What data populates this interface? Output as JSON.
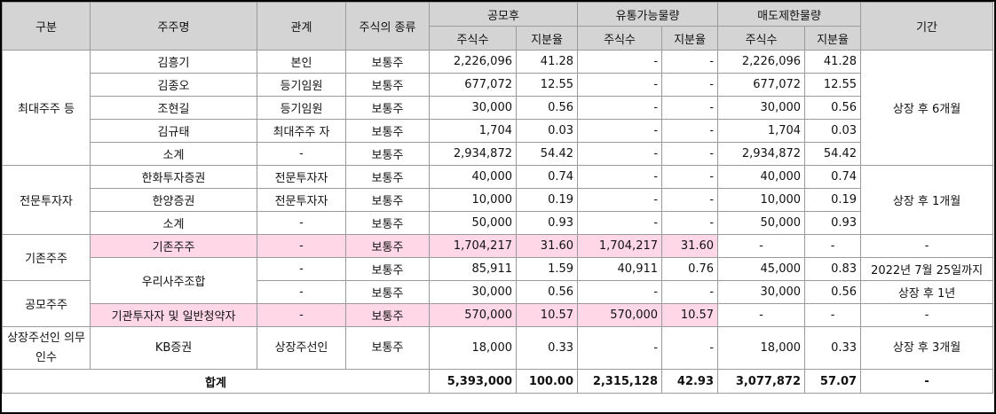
{
  "headers": {
    "category": "구분",
    "holder": "주주명",
    "relation": "관계",
    "stock_type": "주식의 종류",
    "post_ipo": "공모후",
    "tradable": "유통가능물량",
    "restricted": "매도제한물량",
    "period": "기간",
    "shares": "주식수",
    "ratio": "지분율"
  },
  "groups": {
    "major": "최대주주 등",
    "professional": "전문투자자",
    "existing": "기존주주",
    "public": "공모주주",
    "listing": "상장주선인 의무인수"
  },
  "rows": [
    {
      "name": "김흥기",
      "relation": "본인",
      "type": "보통주",
      "post_shares": "2,226,096",
      "post_ratio": "41.28",
      "trade_shares": "-",
      "trade_ratio": "-",
      "rest_shares": "2,226,096",
      "rest_ratio": "41.28"
    },
    {
      "name": "김종오",
      "relation": "등기임원",
      "type": "보통주",
      "post_shares": "677,072",
      "post_ratio": "12.55",
      "trade_shares": "-",
      "trade_ratio": "-",
      "rest_shares": "677,072",
      "rest_ratio": "12.55"
    },
    {
      "name": "조현길",
      "relation": "등기임원",
      "type": "보통주",
      "post_shares": "30,000",
      "post_ratio": "0.56",
      "trade_shares": "-",
      "trade_ratio": "-",
      "rest_shares": "30,000",
      "rest_ratio": "0.56"
    },
    {
      "name": "김규태",
      "relation": "최대주주 자",
      "type": "보통주",
      "post_shares": "1,704",
      "post_ratio": "0.03",
      "trade_shares": "-",
      "trade_ratio": "-",
      "rest_shares": "1,704",
      "rest_ratio": "0.03"
    },
    {
      "name": "소계",
      "relation": "-",
      "type": "보통주",
      "post_shares": "2,934,872",
      "post_ratio": "54.42",
      "trade_shares": "-",
      "trade_ratio": "-",
      "rest_shares": "2,934,872",
      "rest_ratio": "54.42"
    },
    {
      "name": "한화투자증권",
      "relation": "전문투자자",
      "type": "보통주",
      "post_shares": "40,000",
      "post_ratio": "0.74",
      "trade_shares": "-",
      "trade_ratio": "-",
      "rest_shares": "40,000",
      "rest_ratio": "0.74"
    },
    {
      "name": "한양증권",
      "relation": "전문투자자",
      "type": "보통주",
      "post_shares": "10,000",
      "post_ratio": "0.19",
      "trade_shares": "-",
      "trade_ratio": "-",
      "rest_shares": "10,000",
      "rest_ratio": "0.19"
    },
    {
      "name": "소계",
      "relation": "-",
      "type": "보통주",
      "post_shares": "50,000",
      "post_ratio": "0.93",
      "trade_shares": "-",
      "trade_ratio": "-",
      "rest_shares": "50,000",
      "rest_ratio": "0.93"
    },
    {
      "name": "기존주주",
      "relation": "-",
      "type": "보통주",
      "post_shares": "1,704,217",
      "post_ratio": "31.60",
      "trade_shares": "1,704,217",
      "trade_ratio": "31.60",
      "rest_shares": "-",
      "rest_ratio": "-"
    },
    {
      "name": "우리사주조합",
      "relation": "-",
      "type": "보통주",
      "post_shares": "85,911",
      "post_ratio": "1.59",
      "trade_shares": "40,911",
      "trade_ratio": "0.76",
      "rest_shares": "45,000",
      "rest_ratio": "0.83"
    },
    {
      "name": "",
      "relation": "-",
      "type": "보통주",
      "post_shares": "30,000",
      "post_ratio": "0.56",
      "trade_shares": "-",
      "trade_ratio": "-",
      "rest_shares": "30,000",
      "rest_ratio": "0.56"
    },
    {
      "name": "기관투자자 및 일반청약자",
      "relation": "-",
      "type": "보통주",
      "post_shares": "570,000",
      "post_ratio": "10.57",
      "trade_shares": "570,000",
      "trade_ratio": "10.57",
      "rest_shares": "-",
      "rest_ratio": "-"
    },
    {
      "name": "KB증권",
      "relation": "상장주선인",
      "type": "보통주",
      "post_shares": "18,000",
      "post_ratio": "0.33",
      "trade_shares": "-",
      "trade_ratio": "-",
      "rest_shares": "18,000",
      "rest_ratio": "0.33"
    }
  ],
  "periods": {
    "major": "상장 후 6개월",
    "professional": "상장 후 1개월",
    "existing": "-",
    "esop_a": "2022년 7월 25일까지",
    "esop_b": "상장 후 1년",
    "public": "-",
    "listing": "상장 후 3개월"
  },
  "total": {
    "label": "합계",
    "post_shares": "5,393,000",
    "post_ratio": "100.00",
    "trade_shares": "2,315,128",
    "trade_ratio": "42.93",
    "rest_shares": "3,077,872",
    "rest_ratio": "57.07",
    "period": "-"
  },
  "colors": {
    "header_bg": "#d4d4d4",
    "highlight_bg": "#ffd7e7",
    "border": "#9a9a9a"
  }
}
